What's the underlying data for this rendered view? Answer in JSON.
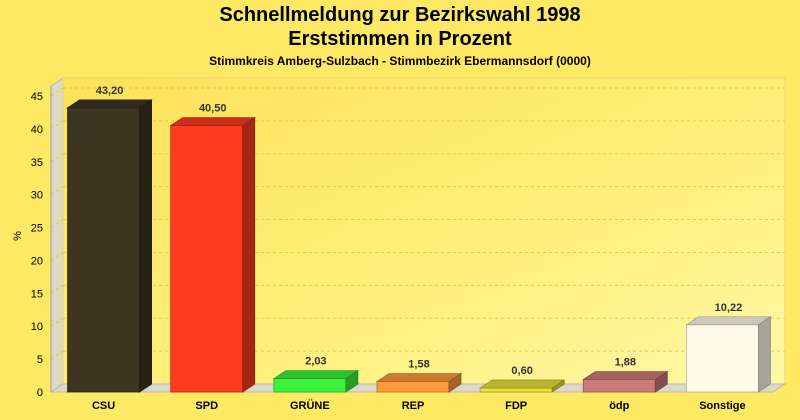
{
  "chart_data": {
    "type": "bar",
    "title": "Schnellmeldung zur Bezirkswahl 1998",
    "title2": "Erststimmen in Prozent",
    "subtitle": "Stimmkreis Amberg-Sulzbach - Stimmbezirk Ebermannsdorf (0000)",
    "ylabel": "%",
    "xlabel": "",
    "ylim": [
      0,
      45
    ],
    "yticks": [
      0,
      5,
      10,
      15,
      20,
      25,
      30,
      35,
      40,
      45
    ],
    "grid": true,
    "categories": [
      "CSU",
      "SPD",
      "GRÜNE",
      "REP",
      "FDP",
      "ödp",
      "Sonstige"
    ],
    "values": [
      43.2,
      40.5,
      2.03,
      1.58,
      0.6,
      1.88,
      10.22
    ],
    "value_labels": [
      "43,20",
      "40,50",
      "2,03",
      "1,58",
      "0,60",
      "1,88",
      "10,22"
    ],
    "colors": [
      "#3d3520",
      "#ff3b1f",
      "#3cf23c",
      "#ff9a3c",
      "#e8e23a",
      "#cc7a7a",
      "#fffbe8"
    ],
    "background_color": "#fde963"
  }
}
